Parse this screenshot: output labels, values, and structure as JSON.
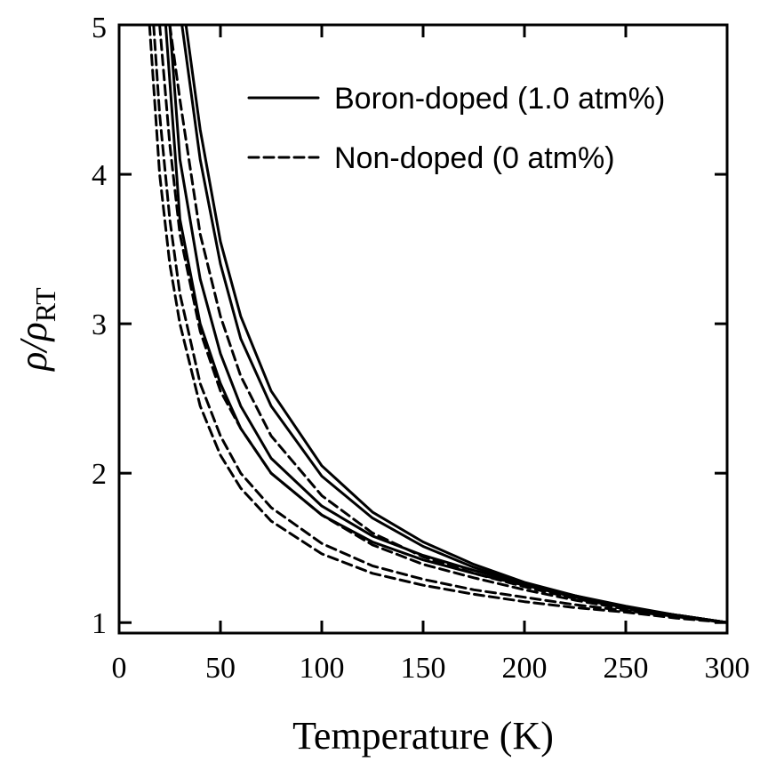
{
  "chart_data": {
    "type": "line",
    "title": "",
    "xlabel": "Temperature (K)",
    "ylabel": "ρ/ρ",
    "ylabel_sub": "RT",
    "xlim": [
      0,
      300
    ],
    "ylim": [
      0.93,
      5
    ],
    "xticks": [
      0,
      50,
      100,
      150,
      200,
      250,
      300
    ],
    "yticks": [
      1,
      2,
      3,
      4,
      5
    ],
    "grid": false,
    "legend_position": "top-right",
    "legend": [
      {
        "label": "Boron-doped (1.0 atm%)",
        "style": "solid"
      },
      {
        "label": "Non-doped (0 atm%)",
        "style": "dashed"
      }
    ],
    "series": [
      {
        "group": "Boron-doped (1.0 atm%)",
        "style": "solid",
        "x": [
          33,
          40,
          50,
          60,
          75,
          100,
          125,
          150,
          175,
          200,
          225,
          250,
          275,
          300
        ],
        "y": [
          5.0,
          4.3,
          3.55,
          3.05,
          2.55,
          2.05,
          1.74,
          1.54,
          1.39,
          1.27,
          1.18,
          1.1,
          1.05,
          1.0
        ]
      },
      {
        "group": "Boron-doped (1.0 atm%)",
        "style": "solid",
        "x": [
          31,
          40,
          50,
          60,
          75,
          100,
          125,
          150,
          175,
          200,
          225,
          250,
          275,
          300
        ],
        "y": [
          5.0,
          4.1,
          3.4,
          2.9,
          2.45,
          1.98,
          1.7,
          1.51,
          1.37,
          1.26,
          1.17,
          1.1,
          1.05,
          1.0
        ]
      },
      {
        "group": "Boron-doped (1.0 atm%)",
        "style": "solid",
        "x": [
          25,
          30,
          40,
          50,
          60,
          75,
          100,
          125,
          150,
          175,
          200,
          225,
          250,
          275,
          300
        ],
        "y": [
          5.0,
          4.1,
          3.3,
          2.8,
          2.45,
          2.1,
          1.78,
          1.58,
          1.45,
          1.35,
          1.26,
          1.18,
          1.11,
          1.05,
          1.0
        ]
      },
      {
        "group": "Boron-doped (1.0 atm%)",
        "style": "solid",
        "x": [
          23,
          30,
          40,
          50,
          60,
          75,
          100,
          125,
          150,
          175,
          200,
          225,
          250,
          275,
          300
        ],
        "y": [
          5.0,
          3.7,
          3.0,
          2.6,
          2.3,
          2.0,
          1.72,
          1.54,
          1.42,
          1.33,
          1.25,
          1.17,
          1.1,
          1.05,
          1.0
        ]
      },
      {
        "group": "Non-doped (0 atm%)",
        "style": "dashed",
        "x": [
          25,
          30,
          40,
          50,
          60,
          75,
          100,
          125,
          150,
          175,
          200,
          225,
          250,
          275,
          300
        ],
        "y": [
          5.0,
          4.5,
          3.6,
          3.05,
          2.65,
          2.25,
          1.85,
          1.6,
          1.44,
          1.33,
          1.24,
          1.16,
          1.1,
          1.05,
          1.0
        ]
      },
      {
        "group": "Non-doped (0 atm%)",
        "style": "dashed",
        "x": [
          20,
          25,
          30,
          40,
          50,
          60,
          75,
          100,
          125,
          150,
          175,
          200,
          225,
          250,
          275,
          300
        ],
        "y": [
          5.0,
          4.2,
          3.6,
          2.95,
          2.55,
          2.3,
          2.0,
          1.72,
          1.52,
          1.39,
          1.3,
          1.22,
          1.15,
          1.09,
          1.04,
          1.0
        ]
      },
      {
        "group": "Non-doped (0 atm%)",
        "style": "dashed",
        "x": [
          17,
          20,
          25,
          30,
          40,
          50,
          60,
          75,
          100,
          125,
          150,
          175,
          200,
          225,
          250,
          275,
          300
        ],
        "y": [
          5.0,
          4.4,
          3.7,
          3.2,
          2.6,
          2.25,
          2.0,
          1.77,
          1.53,
          1.38,
          1.29,
          1.22,
          1.17,
          1.12,
          1.08,
          1.04,
          1.0
        ]
      },
      {
        "group": "Non-doped (0 atm%)",
        "style": "dashed",
        "x": [
          15,
          20,
          25,
          30,
          40,
          50,
          60,
          75,
          100,
          125,
          150,
          175,
          200,
          225,
          250,
          275,
          300
        ],
        "y": [
          5.0,
          4.0,
          3.4,
          3.0,
          2.45,
          2.12,
          1.9,
          1.68,
          1.46,
          1.33,
          1.25,
          1.19,
          1.14,
          1.1,
          1.07,
          1.03,
          1.0
        ]
      }
    ]
  }
}
